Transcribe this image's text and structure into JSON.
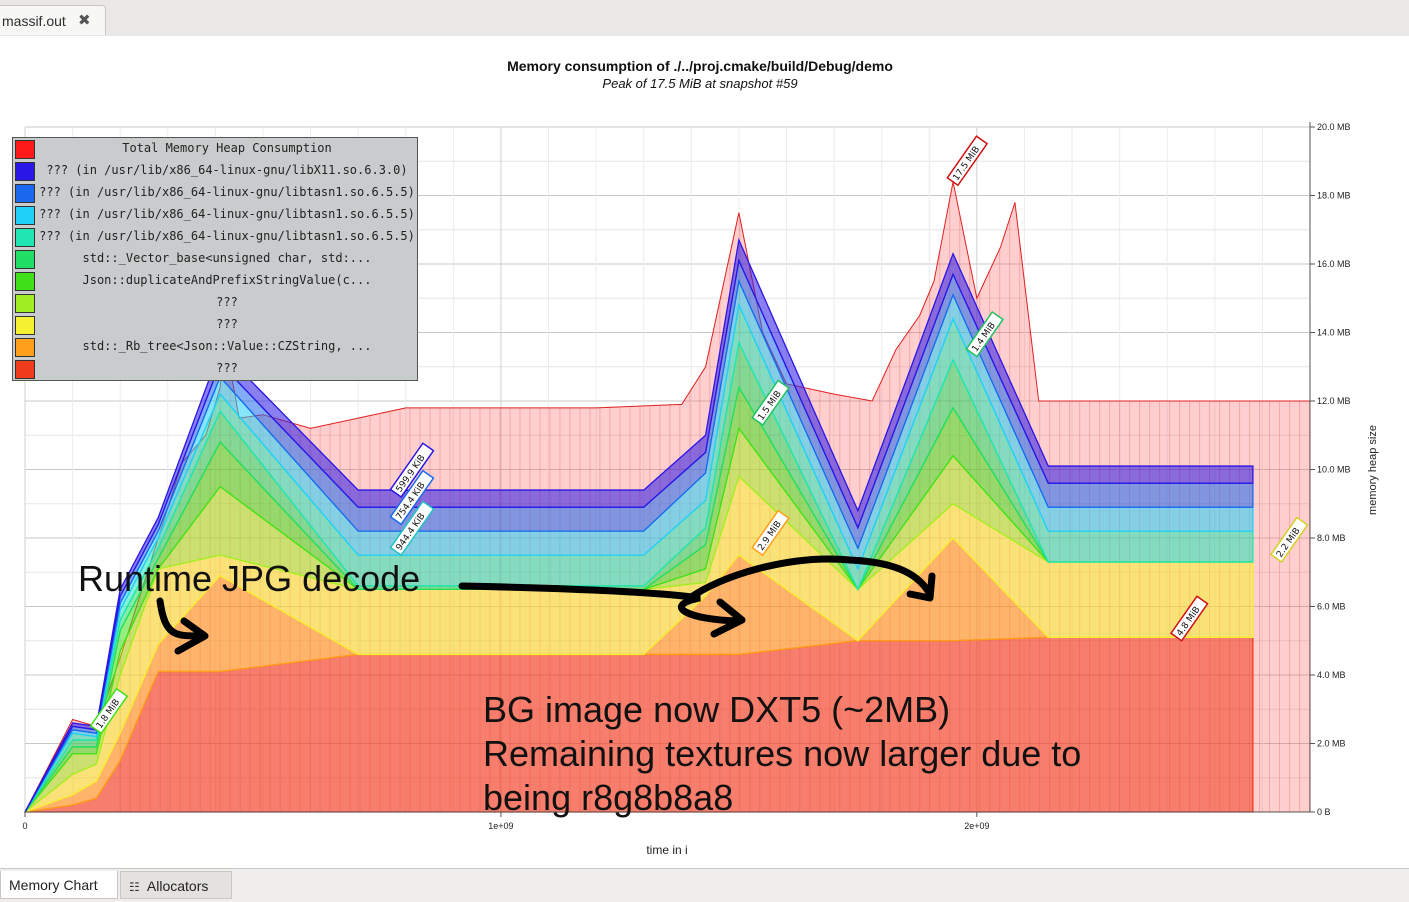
{
  "tab": {
    "title": "massif.out"
  },
  "bottom_tabs": {
    "memory_chart": "Memory Chart",
    "allocators": "Allocators"
  },
  "chart_data": {
    "type": "area",
    "title": "Memory consumption of ./../proj.cmake/build/Debug/demo",
    "subtitle": "Peak of 17.5 MiB at snapshot #59",
    "xlabel": "time in i",
    "ylabel": "memory heap size",
    "x_ticks": [
      "0",
      "1e+09",
      "2e+09"
    ],
    "y_ticks": [
      "0 B",
      "2.0 MB",
      "4.0 MB",
      "6.0 MB",
      "8.0 MB",
      "10.0 MB",
      "12.0 MB",
      "14.0 MB",
      "16.0 MB",
      "18.0 MB",
      "20.0 MB"
    ],
    "xlim": [
      0,
      2700000000
    ],
    "ylim": [
      0,
      20
    ],
    "legend_position": "top-left",
    "total": {
      "name": "Total Memory Heap Consumption",
      "x": [
        0,
        100000000,
        150000000,
        200000000,
        280000000,
        330000000,
        380000000,
        410000000,
        420000000,
        450000000,
        500000000,
        600000000,
        700000000,
        800000000,
        1000000000,
        1200000000,
        1380000000,
        1430000000,
        1500000000,
        1550000000,
        1600000000,
        1700000000,
        1780000000,
        1830000000,
        1880000000,
        1910000000,
        1950000000,
        2000000000,
        2050000000,
        2080000000,
        2130000000,
        2200000000,
        2700000000
      ],
      "values": [
        0,
        2.7,
        2.5,
        4.5,
        8.0,
        10.2,
        11.0,
        12.4,
        13.8,
        11.5,
        11.6,
        11.2,
        11.5,
        11.8,
        11.8,
        11.8,
        11.9,
        13.0,
        17.5,
        14.0,
        12.5,
        12.2,
        12.0,
        13.5,
        14.5,
        15.5,
        18.4,
        15.0,
        16.5,
        17.8,
        12.0,
        12.0,
        12.0
      ]
    },
    "x_shared": [
      0,
      100000000,
      150000000,
      200000000,
      280000000,
      410000000,
      700000000,
      1300000000,
      1430000000,
      1500000000,
      1750000000,
      1950000000,
      2150000000,
      2580000000
    ],
    "series": [
      {
        "name": "???",
        "color": "#f03c1c",
        "values": [
          0,
          0.2,
          0.4,
          1.5,
          4.1,
          4.1,
          4.6,
          4.6,
          4.6,
          4.6,
          5.0,
          5.0,
          5.1,
          5.1
        ]
      },
      {
        "name": "std::_Rb_tree<Json::Value::CZString, ...",
        "color": "#ff9f1a",
        "values": [
          0,
          0.3,
          0.5,
          0.8,
          0.8,
          2.8,
          0,
          0,
          1.7,
          2.9,
          0,
          3.0,
          0,
          0
        ]
      },
      {
        "name": "???",
        "color": "#f6f032",
        "values": [
          0,
          0.6,
          0.5,
          1.7,
          2.2,
          0.6,
          1.9,
          1.9,
          0.4,
          2.3,
          1.5,
          1.0,
          2.2,
          2.2
        ]
      },
      {
        "name": "???",
        "color": "#a0ee22",
        "values": [
          0,
          0.6,
          0.3,
          0.7,
          0,
          2.0,
          0,
          0,
          0.4,
          1.4,
          0,
          1.4,
          0,
          0
        ]
      },
      {
        "name": "Json::duplicateAndPrefixStringValue(c...",
        "color": "#3fe019",
        "values": [
          0,
          0.2,
          0.2,
          0.6,
          0.3,
          1.3,
          0,
          0,
          0.7,
          1.2,
          0,
          1.4,
          0,
          0
        ]
      },
      {
        "name": "std::_Vector_base<unsigned char, std:...",
        "color": "#21df64",
        "values": [
          0,
          0.2,
          0.2,
          0.3,
          0.3,
          0.9,
          0.1,
          0.1,
          0.5,
          1.3,
          0,
          1.4,
          0,
          0
        ]
      },
      {
        "name": "??? (in /usr/lib/x86_64-linux-gnu/libtasn1.so.6.5.5)",
        "color": "#21e6b4",
        "values": [
          0,
          0.2,
          0.1,
          0.3,
          0.3,
          0.5,
          0.9,
          0.9,
          0.8,
          1.1,
          0.6,
          1.2,
          0.9,
          0.9
        ]
      },
      {
        "name": "??? (in /usr/lib/x86_64-linux-gnu/libtasn1.so.6.5.5)",
        "color": "#21d0f8",
        "values": [
          0,
          0.1,
          0.1,
          0.2,
          0.2,
          0.5,
          0.7,
          0.7,
          0.8,
          0.7,
          0.6,
          0.7,
          0.7,
          0.7
        ]
      },
      {
        "name": "??? (in /usr/lib/x86_64-linux-gnu/libtasn1.so.6.5.5)",
        "color": "#1b68ee",
        "values": [
          0,
          0.1,
          0.1,
          0.2,
          0.2,
          0.4,
          0.7,
          0.7,
          0.6,
          0.6,
          0.6,
          0.6,
          0.7,
          0.7
        ]
      },
      {
        "name": "??? (in /usr/lib/x86_64-linux-gnu/libX11.so.6.3.0)",
        "color": "#2a16e6",
        "values": [
          0,
          0.1,
          0.1,
          0.2,
          0.2,
          0.4,
          0.5,
          0.5,
          0.5,
          0.6,
          0.5,
          0.6,
          0.5,
          0.5
        ]
      }
    ],
    "peak_labels": [
      {
        "text": "17.5 MiB",
        "x": 1950000000,
        "y": 18.4,
        "color": "#d01010"
      },
      {
        "text": "1.4 MiB",
        "x": 1990000000,
        "y": 13.4,
        "color": "#21c060"
      },
      {
        "text": "1.5 MiB",
        "x": 1540000000,
        "y": 11.4,
        "color": "#21c060"
      },
      {
        "text": "599.9 KiB",
        "x": 780000000,
        "y": 9.3,
        "color": "#2a16e6"
      },
      {
        "text": "754.4 KiB",
        "x": 780000000,
        "y": 8.5,
        "color": "#1b68ee"
      },
      {
        "text": "944.4 KiB",
        "x": 780000000,
        "y": 7.6,
        "color": "#21c0c0"
      },
      {
        "text": "2.9 MiB",
        "x": 1540000000,
        "y": 7.6,
        "color": "#ff9f1a"
      },
      {
        "text": "2.2 MiB",
        "x": 2630000000,
        "y": 7.4,
        "color": "#d0d020"
      },
      {
        "text": "4.8 MiB",
        "x": 2420000000,
        "y": 5.1,
        "color": "#d01010"
      },
      {
        "text": "1.8 MiB",
        "x": 150000000,
        "y": 2.4,
        "color": "#3fe019"
      }
    ]
  },
  "annotations": {
    "runtime_jpg": "Runtime JPG decode",
    "bg_line1": "BG image now DXT5 (~2MB)",
    "bg_line2": "Remaining textures now larger due to",
    "bg_line3": "being r8g8b8a8"
  }
}
